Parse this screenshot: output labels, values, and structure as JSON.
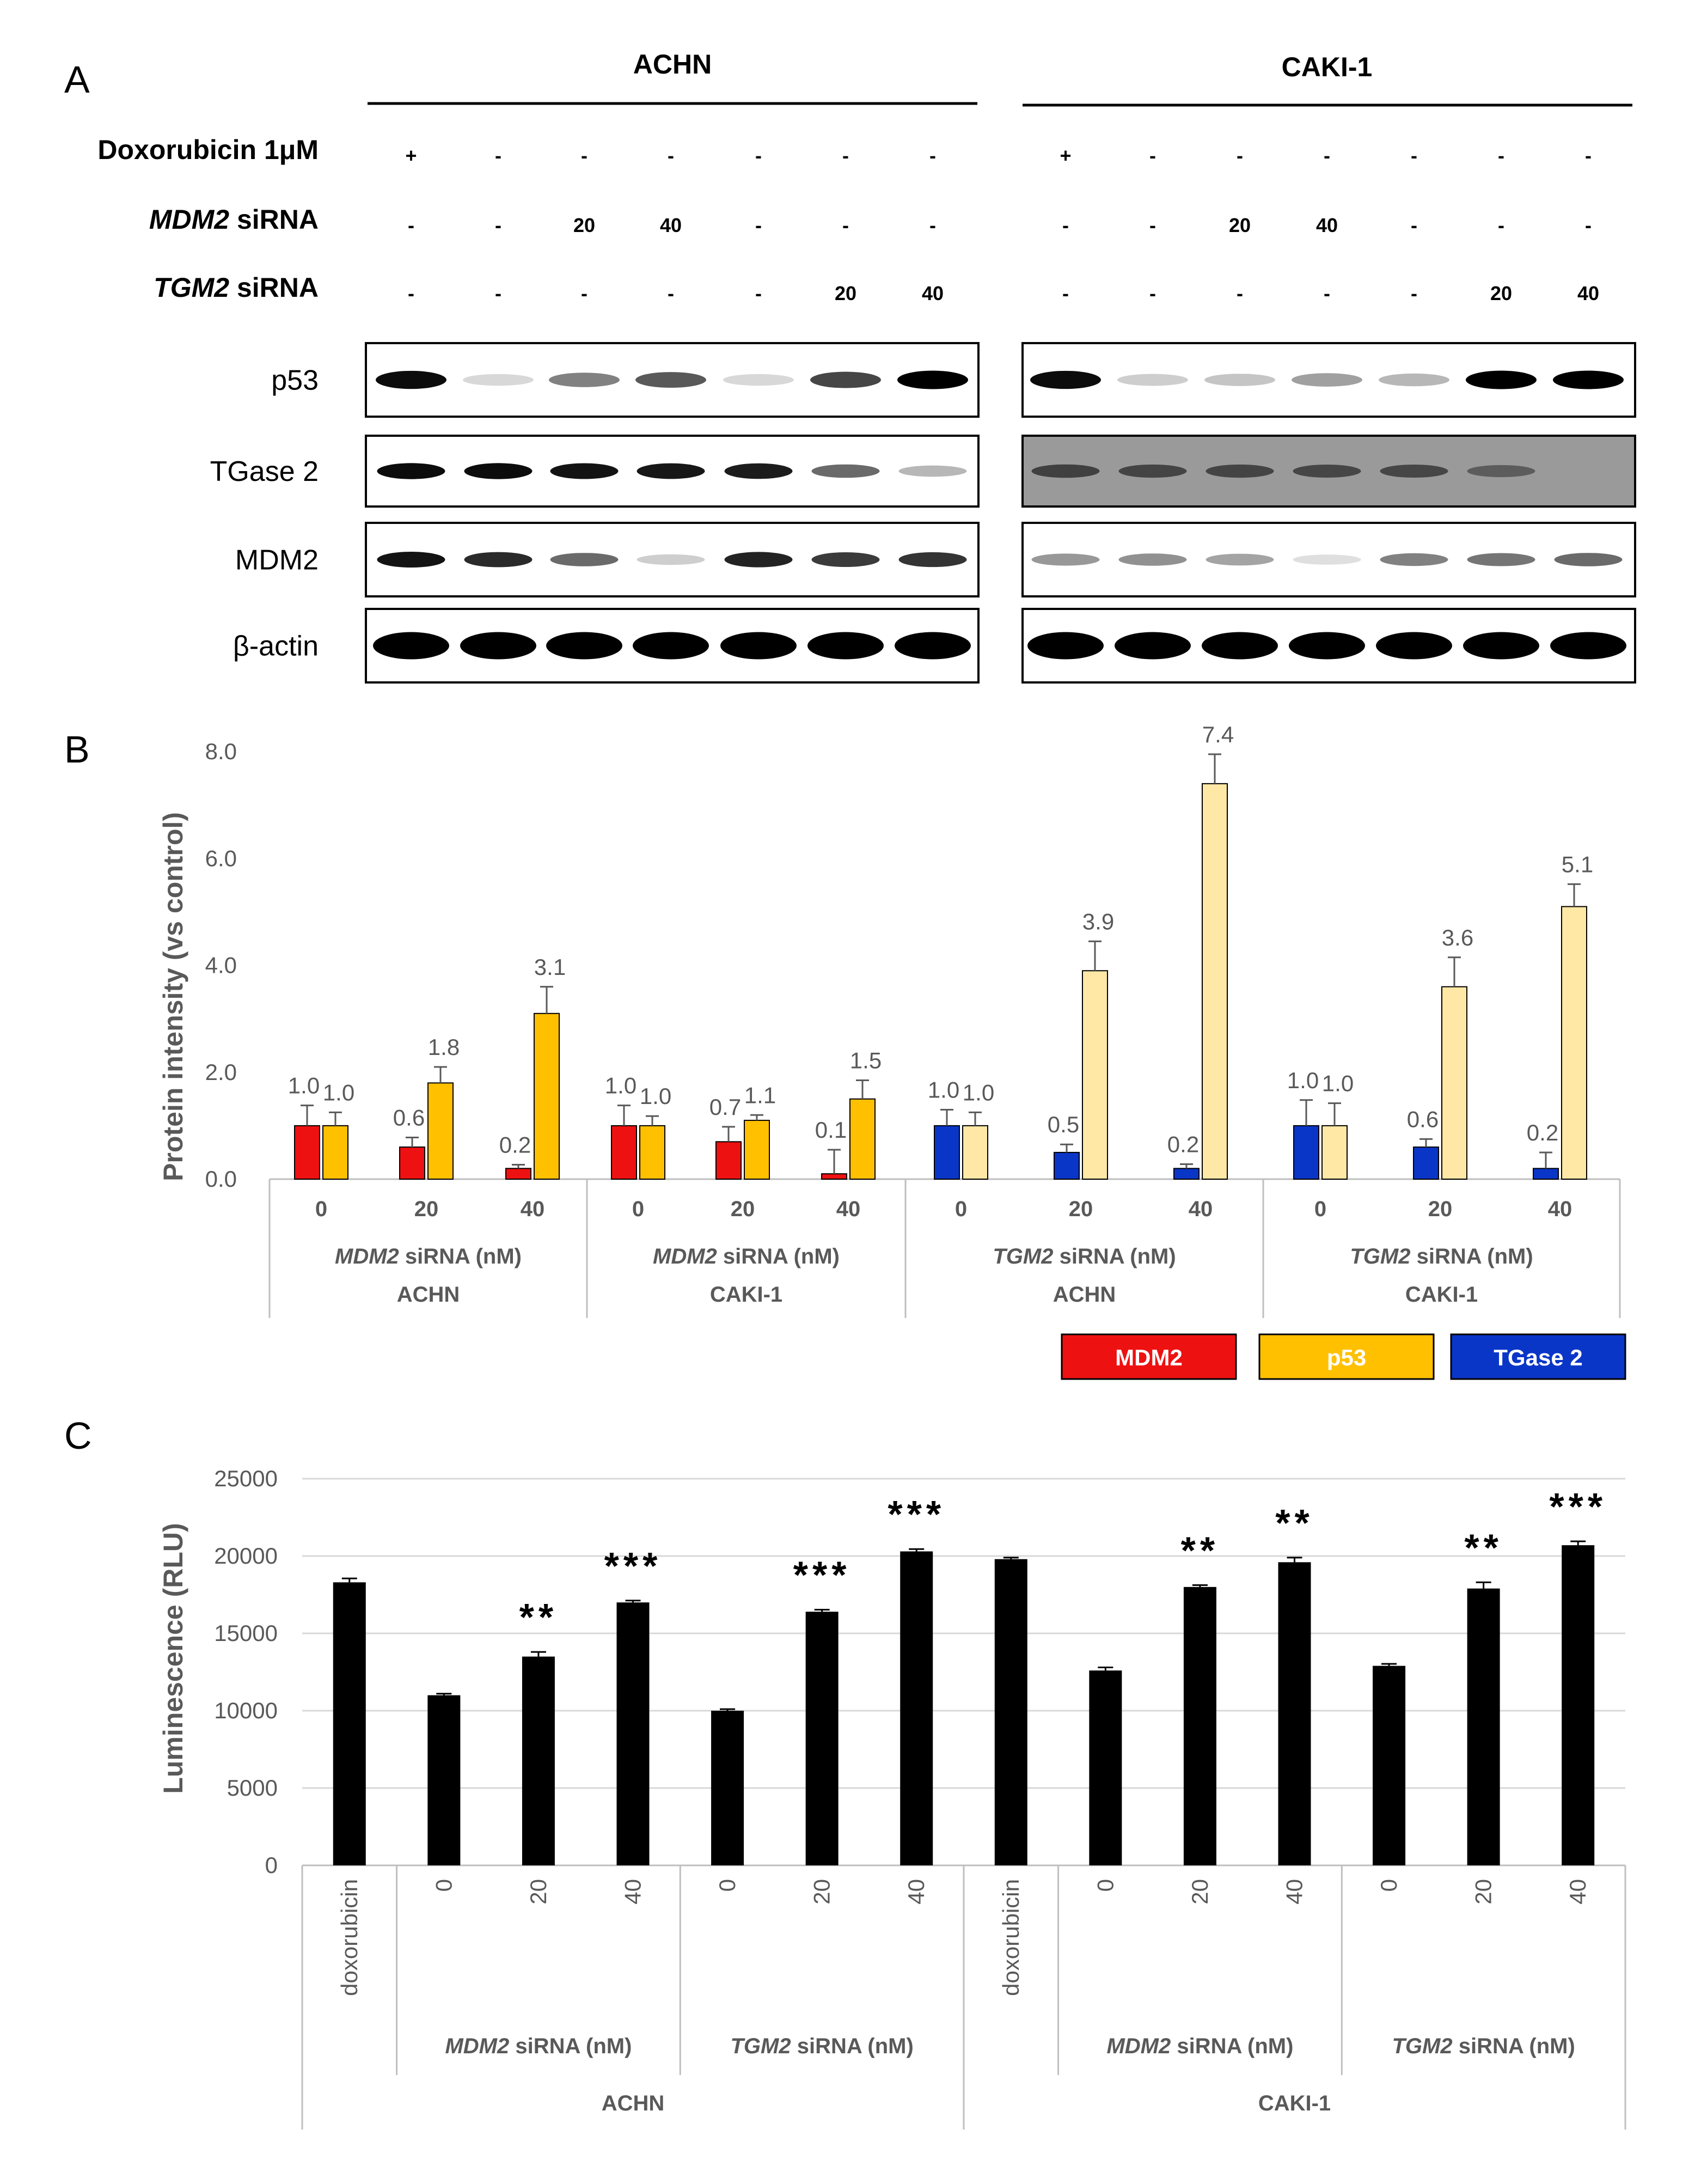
{
  "figure": {
    "panel_labels": [
      "A",
      "B",
      "C"
    ]
  },
  "panel_a": {
    "cell_lines": [
      "ACHN",
      "CAKI-1"
    ],
    "treatment_rows": [
      {
        "label_prefix": "Doxorubicin 1μM",
        "label_suffix": "",
        "label_italic": false,
        "values": [
          "+",
          "-",
          "-",
          "-",
          "-",
          "-",
          "-"
        ]
      },
      {
        "label_prefix": "MDM2",
        "label_suffix": " siRNA",
        "label_italic": true,
        "values": [
          "-",
          "-",
          "20",
          "40",
          "-",
          "-",
          "-"
        ]
      },
      {
        "label_prefix": "TGM2",
        "label_suffix": " siRNA",
        "label_italic": true,
        "values": [
          "-",
          "-",
          "-",
          "-",
          "-",
          "20",
          "40"
        ]
      }
    ],
    "blot_rows": [
      {
        "label": "p53",
        "achn": [
          0.95,
          0.08,
          0.45,
          0.62,
          0.08,
          0.7,
          1.0
        ],
        "caki": [
          0.95,
          0.12,
          0.16,
          0.32,
          0.22,
          1.0,
          1.0
        ],
        "achn_bg": "#ffffff",
        "caki_bg": "#ffffff"
      },
      {
        "label": "TGase 2",
        "achn": [
          0.95,
          0.95,
          0.92,
          0.9,
          0.88,
          0.55,
          0.22
        ],
        "caki": [
          0.55,
          0.52,
          0.52,
          0.5,
          0.5,
          0.35,
          0.0
        ],
        "achn_bg": "#ffffff",
        "caki_bg": "#9a9a9a"
      },
      {
        "label": "MDM2",
        "achn": [
          0.92,
          0.82,
          0.55,
          0.12,
          0.85,
          0.75,
          0.78
        ],
        "caki": [
          0.35,
          0.38,
          0.3,
          0.05,
          0.45,
          0.5,
          0.55
        ],
        "achn_bg": "#ffffff",
        "caki_bg": "#ffffff"
      },
      {
        "label": "β-actin",
        "achn": [
          1.0,
          1.0,
          1.0,
          1.0,
          1.0,
          1.0,
          1.0
        ],
        "caki": [
          1.0,
          1.0,
          1.0,
          1.0,
          1.0,
          1.0,
          1.0
        ],
        "achn_bg": "#ffffff",
        "caki_bg": "#ffffff"
      }
    ]
  },
  "chart_data": [
    {
      "panel": "B",
      "type": "bar",
      "ylabel": "Protein  intensity (vs control)",
      "ylim": [
        0,
        8
      ],
      "yticks": [
        "0.0",
        "2.0",
        "4.0",
        "6.0",
        "8.0"
      ],
      "grid": false,
      "groups": [
        {
          "gene": "MDM2",
          "suffix": " siRNA (nM)",
          "cell_line": "ACHN",
          "categories": [
            "0",
            "20",
            "40"
          ],
          "bars": [
            {
              "color": "#ee1111",
              "values": [
                1.0,
                0.6,
                0.2
              ],
              "errors": [
                0.38,
                0.18,
                0.07
              ],
              "labels": [
                "1.0",
                "0.6",
                "0.2"
              ]
            },
            {
              "color": "#ffc000",
              "values": [
                1.0,
                1.8,
                3.1
              ],
              "errors": [
                0.25,
                0.3,
                0.5
              ],
              "labels": [
                "1.0",
                "1.8",
                "3.1"
              ]
            }
          ]
        },
        {
          "gene": "MDM2",
          "suffix": " siRNA (nM)",
          "cell_line": "CAKI-1",
          "categories": [
            "0",
            "20",
            "40"
          ],
          "bars": [
            {
              "color": "#ee1111",
              "values": [
                1.0,
                0.7,
                0.1
              ],
              "errors": [
                0.38,
                0.28,
                0.45
              ],
              "labels": [
                "1.0",
                "0.7",
                "0.1"
              ]
            },
            {
              "color": "#ffc000",
              "values": [
                1.0,
                1.1,
                1.5
              ],
              "errors": [
                0.18,
                0.1,
                0.35
              ],
              "labels": [
                "1.0",
                "1.1",
                "1.5"
              ]
            }
          ]
        },
        {
          "gene": "TGM2",
          "suffix": " siRNA (nM)",
          "cell_line": "ACHN",
          "categories": [
            "0",
            "20",
            "40"
          ],
          "bars": [
            {
              "color": "#0a36c8",
              "values": [
                1.0,
                0.5,
                0.2
              ],
              "errors": [
                0.3,
                0.15,
                0.08
              ],
              "labels": [
                "1.0",
                "0.5",
                "0.2"
              ]
            },
            {
              "color": "#ffe8a6",
              "values": [
                1.0,
                3.9,
                7.4
              ],
              "errors": [
                0.25,
                0.55,
                0.55
              ],
              "labels": [
                "1.0",
                "3.9",
                "7.4"
              ]
            }
          ]
        },
        {
          "gene": "TGM2",
          "suffix": " siRNA (nM)",
          "cell_line": "CAKI-1",
          "categories": [
            "0",
            "20",
            "40"
          ],
          "bars": [
            {
              "color": "#0a36c8",
              "values": [
                1.0,
                0.6,
                0.2
              ],
              "errors": [
                0.48,
                0.15,
                0.3
              ],
              "labels": [
                "1.0",
                "0.6",
                "0.2"
              ]
            },
            {
              "color": "#ffe8a6",
              "values": [
                1.0,
                3.6,
                5.1
              ],
              "errors": [
                0.42,
                0.55,
                0.42
              ],
              "labels": [
                "1.0",
                "3.6",
                "5.1"
              ]
            }
          ]
        }
      ],
      "legend": {
        "placement": "bottom-right",
        "entries": [
          {
            "name": "MDM2",
            "color": "#ee1111",
            "text_color": "#ffffff"
          },
          {
            "name": "p53",
            "color": "#ffc000",
            "text_color": "#ffffff"
          },
          {
            "name": "TGase 2",
            "color": "#0a36c8",
            "text_color": "#ffffff"
          }
        ]
      }
    },
    {
      "panel": "C",
      "type": "bar",
      "ylabel": "Luminescence (RLU)",
      "ylim": [
        0,
        25000
      ],
      "yticks": [
        "0",
        "5000",
        "10000",
        "15000",
        "20000",
        "25000"
      ],
      "grid": true,
      "bar_color": "#000000",
      "categories": [
        "doxorubicin",
        "0",
        "20",
        "40",
        "0",
        "20",
        "40",
        "doxorubicin",
        "0",
        "20",
        "40",
        "0",
        "20",
        "40"
      ],
      "values": [
        18300,
        11000,
        13500,
        17000,
        10000,
        16400,
        20300,
        19800,
        12600,
        18000,
        19600,
        12900,
        17900,
        20700
      ],
      "errors": [
        250,
        100,
        300,
        120,
        100,
        130,
        150,
        100,
        200,
        120,
        300,
        130,
        400,
        250
      ],
      "significance": [
        "",
        "",
        "**",
        "***",
        "",
        "***",
        "***",
        "",
        "",
        "**",
        "**",
        "",
        "**",
        "***"
      ],
      "subgroups": [
        {
          "gene": "",
          "suffix": "",
          "start": 0,
          "end": 0
        },
        {
          "gene": "MDM2",
          "suffix": " siRNA (nM)",
          "start": 1,
          "end": 3
        },
        {
          "gene": "TGM2",
          "suffix": " siRNA (nM)",
          "start": 4,
          "end": 6
        },
        {
          "gene": "",
          "suffix": "",
          "start": 7,
          "end": 7
        },
        {
          "gene": "MDM2",
          "suffix": " siRNA (nM)",
          "start": 8,
          "end": 10
        },
        {
          "gene": "TGM2",
          "suffix": " siRNA (nM)",
          "start": 11,
          "end": 13
        }
      ],
      "cell_groups": [
        {
          "name": "ACHN",
          "start": 0,
          "end": 6
        },
        {
          "name": "CAKI-1",
          "start": 7,
          "end": 13
        }
      ]
    }
  ]
}
